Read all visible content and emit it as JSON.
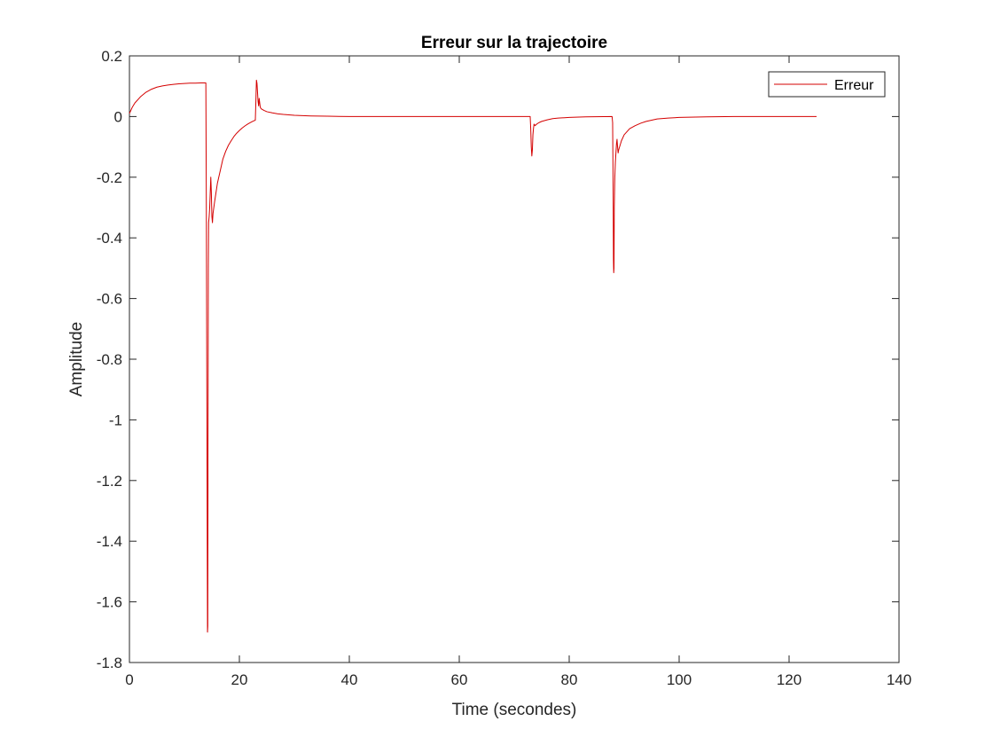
{
  "chart_data": {
    "type": "line",
    "title": "Erreur sur la trajectoire",
    "xlabel": "Time (secondes)",
    "ylabel": "Amplitude",
    "xlim": [
      0,
      140
    ],
    "ylim": [
      -1.8,
      0.2
    ],
    "xticks": [
      0,
      20,
      40,
      60,
      80,
      100,
      120,
      140
    ],
    "xtick_labels": [
      "0",
      "20",
      "40",
      "60",
      "80",
      "100",
      "120",
      "140"
    ],
    "yticks": [
      0.2,
      0,
      -0.2,
      -0.4,
      -0.6,
      -0.8,
      -1,
      -1.2,
      -1.4,
      -1.6,
      -1.8
    ],
    "ytick_labels": [
      "0.2",
      "0",
      "-0.2",
      "-0.4",
      "-0.6",
      "-0.8",
      "-1",
      "-1.2",
      "-1.4",
      "-1.6",
      "-1.8"
    ],
    "grid": false,
    "legend_position": "top-right",
    "series": [
      {
        "name": "Erreur",
        "color": "#d40000",
        "x": [
          0,
          0.5,
          1,
          2,
          3,
          4,
          5,
          6,
          7,
          8,
          9,
          10,
          11,
          12,
          13,
          13.9,
          14.0,
          14.1,
          14.2,
          14.25,
          14.3,
          14.35,
          14.4,
          14.5,
          14.6,
          14.7,
          14.8,
          14.9,
          15.0,
          15.1,
          15.2,
          15.5,
          16,
          16.5,
          17,
          17.5,
          18,
          18.5,
          19,
          19.5,
          20,
          20.5,
          21,
          21.5,
          22,
          22.5,
          22.9,
          23.0,
          23.1,
          23.2,
          23.3,
          23.4,
          23.5,
          23.6,
          23.7,
          23.8,
          24,
          24.5,
          25,
          26,
          27,
          28,
          30,
          33,
          36,
          40,
          50,
          60,
          70,
          72.9,
          73.0,
          73.1,
          73.2,
          73.3,
          73.4,
          73.5,
          73.6,
          73.8,
          74,
          74.5,
          75,
          76,
          77,
          78,
          80,
          83,
          87.8,
          87.9,
          88.0,
          88.05,
          88.1,
          88.15,
          88.2,
          88.3,
          88.4,
          88.5,
          88.6,
          88.7,
          88.8,
          88.9,
          89.0,
          89.5,
          90,
          91,
          92,
          93,
          94,
          95,
          96,
          98,
          100,
          105,
          110,
          115,
          120,
          125
        ],
        "y": [
          0.01,
          0.03,
          0.045,
          0.065,
          0.08,
          0.09,
          0.097,
          0.101,
          0.104,
          0.106,
          0.108,
          0.109,
          0.11,
          0.11,
          0.111,
          0.111,
          -0.35,
          -1.05,
          -1.7,
          -1.68,
          -1.05,
          -0.5,
          -0.35,
          -0.33,
          -0.3,
          -0.25,
          -0.2,
          -0.25,
          -0.33,
          -0.35,
          -0.32,
          -0.28,
          -0.22,
          -0.18,
          -0.14,
          -0.115,
          -0.095,
          -0.08,
          -0.066,
          -0.055,
          -0.046,
          -0.038,
          -0.031,
          -0.025,
          -0.02,
          -0.015,
          -0.012,
          0.05,
          0.12,
          0.11,
          0.08,
          0.05,
          0.035,
          0.06,
          0.045,
          0.03,
          0.025,
          0.02,
          0.016,
          0.012,
          0.009,
          0.007,
          0.004,
          0.002,
          0.001,
          0.0,
          0.0,
          0.0,
          0.0,
          0.0,
          -0.04,
          -0.1,
          -0.13,
          -0.11,
          -0.06,
          -0.04,
          -0.025,
          -0.03,
          -0.026,
          -0.02,
          -0.016,
          -0.011,
          -0.007,
          -0.005,
          -0.003,
          -0.001,
          0.0,
          -0.02,
          -0.26,
          -0.47,
          -0.515,
          -0.5,
          -0.3,
          -0.2,
          -0.15,
          -0.12,
          -0.09,
          -0.075,
          -0.1,
          -0.12,
          -0.11,
          -0.08,
          -0.06,
          -0.04,
          -0.03,
          -0.022,
          -0.016,
          -0.012,
          -0.008,
          -0.005,
          -0.003,
          -0.001,
          0.0,
          0.0,
          0.0,
          0.0
        ]
      }
    ]
  }
}
